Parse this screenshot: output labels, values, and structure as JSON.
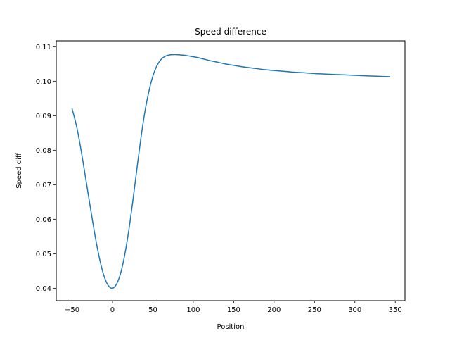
{
  "chart_data": {
    "type": "line",
    "title": "Speed difference",
    "xlabel": "Position",
    "ylabel": "Speed diff",
    "xlim": [
      -69.6,
      362.0
    ],
    "ylim": [
      0.0364,
      0.1117
    ],
    "xticks": [
      -50,
      0,
      50,
      100,
      150,
      200,
      250,
      300,
      350
    ],
    "xtick_labels": [
      "−50",
      "0",
      "50",
      "100",
      "150",
      "200",
      "250",
      "300",
      "350"
    ],
    "yticks": [
      0.04,
      0.05,
      0.06,
      0.07,
      0.08,
      0.09,
      0.1,
      0.11
    ],
    "ytick_labels": [
      "0.04",
      "0.05",
      "0.06",
      "0.07",
      "0.08",
      "0.09",
      "0.10",
      "0.11"
    ],
    "grid": false,
    "series": [
      {
        "color": "#1f77b4",
        "x": [
          -50,
          -45,
          -40,
          -35,
          -30,
          -25,
          -20,
          -15,
          -10,
          -5,
          0,
          5,
          10,
          15,
          20,
          25,
          30,
          35,
          40,
          45,
          50,
          55,
          60,
          65,
          70,
          75,
          80,
          85,
          90,
          95,
          100,
          110,
          120,
          130,
          140,
          150,
          160,
          170,
          180,
          190,
          200,
          220,
          240,
          260,
          280,
          300,
          320,
          343
        ],
        "y": [
          0.092,
          0.0875,
          0.0815,
          0.0745,
          0.0672,
          0.06,
          0.0532,
          0.0475,
          0.0432,
          0.0407,
          0.04,
          0.0412,
          0.0443,
          0.0495,
          0.0565,
          0.065,
          0.0742,
          0.0832,
          0.091,
          0.097,
          0.1015,
          0.1045,
          0.1063,
          0.1072,
          0.1076,
          0.1077,
          0.1077,
          0.1076,
          0.1075,
          0.1073,
          0.1071,
          0.1066,
          0.106,
          0.1055,
          0.105,
          0.1046,
          0.1042,
          0.1039,
          0.1036,
          0.1033,
          0.1031,
          0.1027,
          0.1024,
          0.1021,
          0.1019,
          0.1017,
          0.1015,
          0.1013
        ]
      }
    ]
  }
}
